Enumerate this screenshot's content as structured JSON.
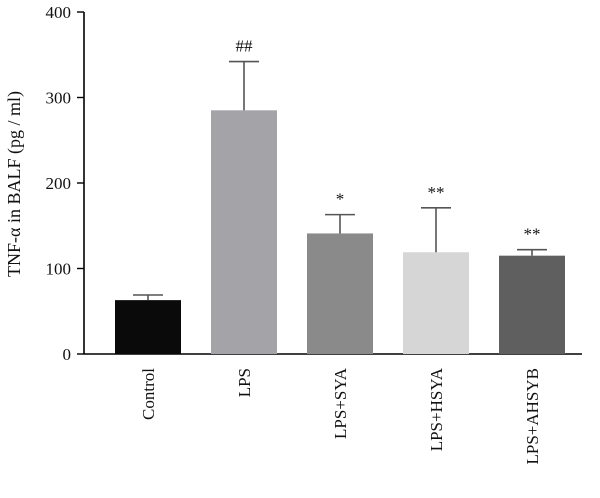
{
  "chart_data": {
    "type": "bar",
    "title": "",
    "xlabel": "",
    "ylabel": "TNF-α in BALF (pg / ml)",
    "ylim": [
      0,
      400
    ],
    "yticks": [
      0,
      100,
      200,
      300,
      400
    ],
    "grid": false,
    "legend": "none",
    "categories": [
      "Control",
      "LPS",
      "LPS+SYA",
      "LPS+HSYA",
      "LPS+AHSYB"
    ],
    "values": [
      63,
      285,
      141,
      119,
      115
    ],
    "error_upper": [
      69,
      342,
      163,
      171,
      122
    ],
    "annotations": [
      "",
      "##",
      "*",
      "**",
      "**"
    ],
    "colors": [
      "#0a0a0a",
      "#a3a3a8",
      "#8a8a8a",
      "#d6d6d6",
      "#5f5f5f"
    ]
  }
}
